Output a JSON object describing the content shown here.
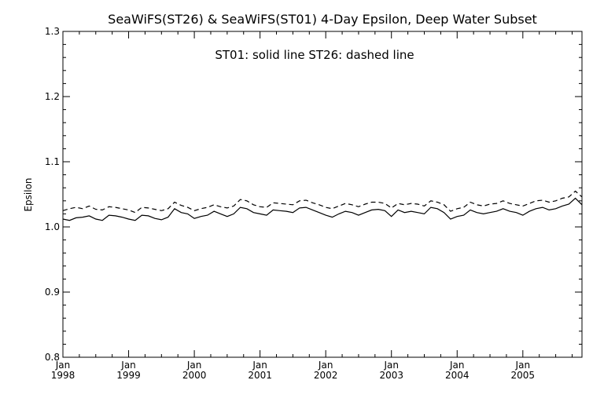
{
  "chart_data": {
    "type": "line",
    "title": "SeaWiFS(ST26) & SeaWiFS(ST01) 4-Day Epsilon, Deep Water Subset",
    "annotation": "ST01: solid line   ST26: dashed line",
    "xlabel": "",
    "ylabel": "Epsilon",
    "xlim": [
      1998.0,
      2005.9
    ],
    "ylim": [
      0.8,
      1.3
    ],
    "grid": false,
    "y_ticks": [
      "0.8",
      "0.9",
      "1.0",
      "1.1",
      "1.2",
      "1.3"
    ],
    "y_tick_values": [
      0.8,
      0.9,
      1.0,
      1.1,
      1.2,
      1.3
    ],
    "x_ticks": [
      {
        "top": "Jan",
        "bottom": "1998",
        "value": 1998
      },
      {
        "top": "Jan",
        "bottom": "1999",
        "value": 1999
      },
      {
        "top": "Jan",
        "bottom": "2000",
        "value": 2000
      },
      {
        "top": "Jan",
        "bottom": "2001",
        "value": 2001
      },
      {
        "top": "Jan",
        "bottom": "2002",
        "value": 2002
      },
      {
        "top": "Jan",
        "bottom": "2003",
        "value": 2003
      },
      {
        "top": "Jan",
        "bottom": "2004",
        "value": 2004
      },
      {
        "top": "Jan",
        "bottom": "2005",
        "value": 2005
      }
    ],
    "series": [
      {
        "name": "ST01",
        "style": "solid",
        "x": [
          1998.0,
          1998.1,
          1998.2,
          1998.3,
          1998.4,
          1998.5,
          1998.6,
          1998.7,
          1998.8,
          1998.9,
          1999.0,
          1999.1,
          1999.2,
          1999.3,
          1999.4,
          1999.5,
          1999.6,
          1999.7,
          1999.8,
          1999.9,
          2000.0,
          2000.1,
          2000.2,
          2000.3,
          2000.4,
          2000.5,
          2000.6,
          2000.7,
          2000.8,
          2000.9,
          2001.0,
          2001.1,
          2001.2,
          2001.3,
          2001.4,
          2001.5,
          2001.6,
          2001.7,
          2001.8,
          2001.9,
          2002.0,
          2002.1,
          2002.2,
          2002.3,
          2002.4,
          2002.5,
          2002.6,
          2002.7,
          2002.8,
          2002.9,
          2003.0,
          2003.1,
          2003.2,
          2003.3,
          2003.4,
          2003.5,
          2003.6,
          2003.7,
          2003.8,
          2003.9,
          2004.0,
          2004.1,
          2004.2,
          2004.3,
          2004.4,
          2004.5,
          2004.6,
          2004.7,
          2004.8,
          2004.9,
          2005.0,
          2005.1,
          2005.2,
          2005.3,
          2005.4,
          2005.5,
          2005.6,
          2005.7,
          2005.8,
          2005.9
        ],
        "y": [
          1.012,
          1.01,
          1.014,
          1.015,
          1.017,
          1.012,
          1.01,
          1.018,
          1.017,
          1.015,
          1.012,
          1.01,
          1.018,
          1.017,
          1.013,
          1.011,
          1.015,
          1.028,
          1.022,
          1.02,
          1.013,
          1.016,
          1.018,
          1.024,
          1.02,
          1.016,
          1.02,
          1.03,
          1.028,
          1.022,
          1.02,
          1.018,
          1.026,
          1.025,
          1.024,
          1.022,
          1.029,
          1.03,
          1.026,
          1.022,
          1.018,
          1.015,
          1.02,
          1.024,
          1.022,
          1.018,
          1.022,
          1.026,
          1.027,
          1.025,
          1.016,
          1.026,
          1.022,
          1.024,
          1.022,
          1.02,
          1.03,
          1.028,
          1.022,
          1.012,
          1.016,
          1.018,
          1.026,
          1.022,
          1.02,
          1.022,
          1.024,
          1.028,
          1.024,
          1.022,
          1.018,
          1.024,
          1.028,
          1.03,
          1.026,
          1.028,
          1.032,
          1.035,
          1.044,
          1.034
        ]
      },
      {
        "name": "ST26",
        "style": "dashed",
        "x": [
          1998.0,
          1998.1,
          1998.2,
          1998.3,
          1998.4,
          1998.5,
          1998.6,
          1998.7,
          1998.8,
          1998.9,
          1999.0,
          1999.1,
          1999.2,
          1999.3,
          1999.4,
          1999.5,
          1999.6,
          1999.7,
          1999.8,
          1999.9,
          2000.0,
          2000.1,
          2000.2,
          2000.3,
          2000.4,
          2000.5,
          2000.6,
          2000.7,
          2000.8,
          2000.9,
          2001.0,
          2001.1,
          2001.2,
          2001.3,
          2001.4,
          2001.5,
          2001.6,
          2001.7,
          2001.8,
          2001.9,
          2002.0,
          2002.1,
          2002.2,
          2002.3,
          2002.4,
          2002.5,
          2002.6,
          2002.7,
          2002.8,
          2002.9,
          2003.0,
          2003.1,
          2003.2,
          2003.3,
          2003.4,
          2003.5,
          2003.6,
          2003.7,
          2003.8,
          2003.9,
          2004.0,
          2004.1,
          2004.2,
          2004.3,
          2004.4,
          2004.5,
          2004.6,
          2004.7,
          2004.8,
          2004.9,
          2005.0,
          2005.1,
          2005.2,
          2005.3,
          2005.4,
          2005.5,
          2005.6,
          2005.7,
          2005.8,
          2005.9
        ],
        "y": [
          1.025,
          1.028,
          1.03,
          1.028,
          1.032,
          1.027,
          1.026,
          1.031,
          1.03,
          1.028,
          1.026,
          1.022,
          1.03,
          1.029,
          1.027,
          1.025,
          1.028,
          1.038,
          1.033,
          1.03,
          1.025,
          1.028,
          1.03,
          1.034,
          1.031,
          1.029,
          1.032,
          1.042,
          1.04,
          1.034,
          1.031,
          1.03,
          1.037,
          1.036,
          1.035,
          1.034,
          1.04,
          1.041,
          1.037,
          1.034,
          1.03,
          1.028,
          1.032,
          1.036,
          1.034,
          1.031,
          1.035,
          1.038,
          1.038,
          1.036,
          1.029,
          1.036,
          1.034,
          1.036,
          1.035,
          1.032,
          1.04,
          1.038,
          1.034,
          1.024,
          1.028,
          1.03,
          1.038,
          1.034,
          1.032,
          1.035,
          1.036,
          1.04,
          1.036,
          1.034,
          1.032,
          1.036,
          1.04,
          1.041,
          1.038,
          1.04,
          1.044,
          1.046,
          1.055,
          1.046
        ]
      }
    ]
  }
}
